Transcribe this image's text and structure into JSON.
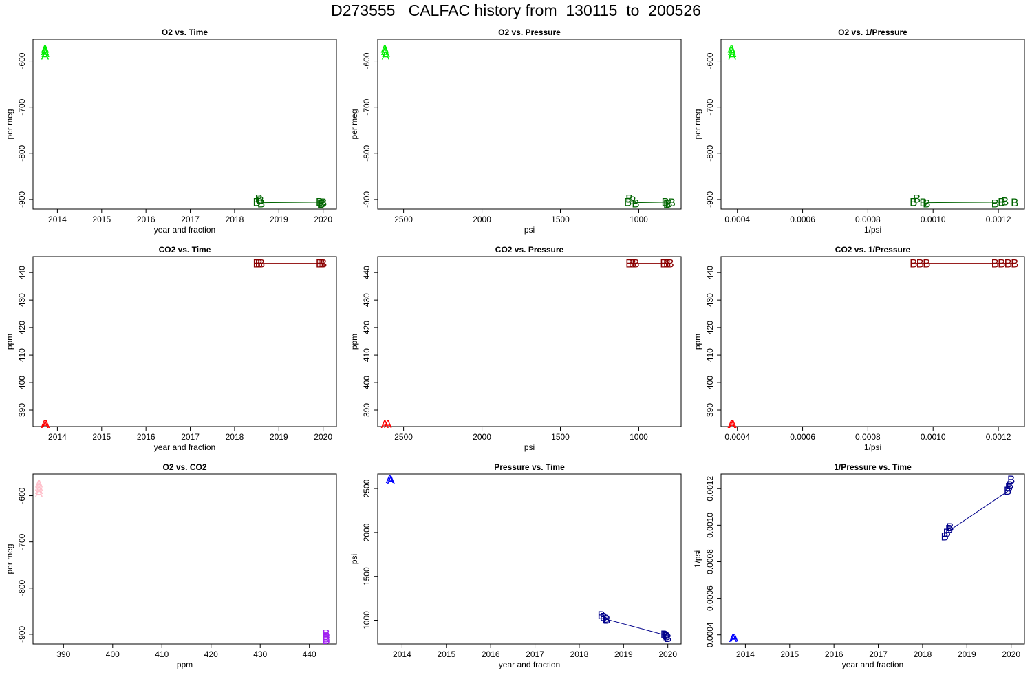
{
  "figure": {
    "title": "D273555   CALFAC history from  130115  to  200526"
  },
  "colors": {
    "o2": "#00ee00",
    "o2_dark": "#006400",
    "co2": "#ff0000",
    "co2_dark": "#8b0000",
    "o2co2": "#ffc0cb",
    "o2co2_dark": "#a020f0",
    "pressure": "#0000ff",
    "pressure_dark": "#00008b"
  },
  "chart_data": [
    {
      "id": "o2-time",
      "type": "scatter",
      "title": "O2 vs. Time",
      "xlabel": "year and fraction",
      "ylabel": "per meg",
      "xlim": [
        2013.45,
        2020.3
      ],
      "ylim": [
        -921,
        -553
      ],
      "xticks": [
        2014,
        2015,
        2016,
        2017,
        2018,
        2019,
        2020
      ],
      "yticks": [
        -600,
        -700,
        -800,
        -900
      ],
      "color_a": "o2",
      "color_b": "o2_dark",
      "series": [
        {
          "label": "A",
          "points": [
            [
              2013.72,
              -573
            ],
            [
              2013.72,
              -578
            ],
            [
              2013.73,
              -583
            ],
            [
              2013.72,
              -588
            ]
          ]
        },
        {
          "label": "B",
          "line": [
            [
              2018.6,
              -907
            ],
            [
              2019.95,
              -906
            ]
          ],
          "points": [
            [
              2018.5,
              -905
            ],
            [
              2018.55,
              -898
            ],
            [
              2018.58,
              -902
            ],
            [
              2018.6,
              -908
            ],
            [
              2019.92,
              -905
            ],
            [
              2019.95,
              -910
            ],
            [
              2019.97,
              -908
            ],
            [
              2020.0,
              -906
            ]
          ]
        }
      ]
    },
    {
      "id": "o2-pressure",
      "type": "scatter",
      "title": "O2 vs. Pressure",
      "xlabel": "psi",
      "ylabel": "per meg",
      "xlim": [
        2665,
        730
      ],
      "ylim": [
        -921,
        -553
      ],
      "xticks": [
        2500,
        2000,
        1500,
        1000
      ],
      "yticks": [
        -600,
        -700,
        -800,
        -900
      ],
      "color_a": "o2",
      "color_b": "o2_dark",
      "series": [
        {
          "label": "A",
          "points": [
            [
              2620,
              -573
            ],
            [
              2618,
              -578
            ],
            [
              2612,
              -583
            ],
            [
              2615,
              -588
            ]
          ]
        },
        {
          "label": "B",
          "line": [
            [
              1020,
              -907
            ],
            [
              820,
              -906
            ]
          ],
          "points": [
            [
              1070,
              -905
            ],
            [
              1060,
              -898
            ],
            [
              1040,
              -902
            ],
            [
              1020,
              -908
            ],
            [
              830,
              -905
            ],
            [
              820,
              -910
            ],
            [
              810,
              -908
            ],
            [
              790,
              -906
            ]
          ]
        }
      ]
    },
    {
      "id": "o2-invpressure",
      "type": "scatter",
      "title": "O2 vs. 1/Pressure",
      "xlabel": "1/psi",
      "ylabel": "per meg",
      "xlim": [
        0.00035,
        0.00128
      ],
      "ylim": [
        -921,
        -553
      ],
      "xticks": [
        0.0004,
        0.0006,
        0.0008,
        0.001,
        0.0012
      ],
      "xtick_labels": [
        "0.0004",
        "0.0006",
        "0.0008",
        "0.0010",
        "0.0012"
      ],
      "yticks": [
        -600,
        -700,
        -800,
        -900
      ],
      "color_a": "o2",
      "color_b": "o2_dark",
      "series": [
        {
          "label": "A",
          "points": [
            [
              0.000382,
              -573
            ],
            [
              0.000383,
              -578
            ],
            [
              0.000385,
              -583
            ],
            [
              0.000384,
              -588
            ]
          ]
        },
        {
          "label": "B",
          "line": [
            [
              0.00098,
              -907
            ],
            [
              0.00122,
              -906
            ]
          ],
          "points": [
            [
              0.00094,
              -905
            ],
            [
              0.00095,
              -898
            ],
            [
              0.00097,
              -906
            ],
            [
              0.00098,
              -908
            ],
            [
              0.00119,
              -908
            ],
            [
              0.00121,
              -905
            ],
            [
              0.00122,
              -904
            ],
            [
              0.00125,
              -906
            ]
          ]
        }
      ]
    },
    {
      "id": "co2-time",
      "type": "scatter",
      "title": "CO2 vs. Time",
      "xlabel": "year and fraction",
      "ylabel": "ppm",
      "xlim": [
        2013.45,
        2020.3
      ],
      "ylim": [
        384,
        445.8
      ],
      "xticks": [
        2014,
        2015,
        2016,
        2017,
        2018,
        2019,
        2020
      ],
      "yticks": [
        390,
        400,
        410,
        420,
        430,
        440
      ],
      "color_a": "co2",
      "color_b": "co2_dark",
      "series": [
        {
          "label": "A",
          "points": [
            [
              2013.71,
              385.0
            ],
            [
              2013.74,
              385.0
            ]
          ]
        },
        {
          "label": "B",
          "line": [
            [
              2018.5,
              443.4
            ],
            [
              2020.0,
              443.4
            ]
          ],
          "points": [
            [
              2018.5,
              443.4
            ],
            [
              2018.55,
              443.4
            ],
            [
              2018.6,
              443.4
            ],
            [
              2019.92,
              443.4
            ],
            [
              2019.96,
              443.4
            ],
            [
              2020.0,
              443.4
            ]
          ]
        }
      ]
    },
    {
      "id": "co2-pressure",
      "type": "scatter",
      "title": "CO2 vs. Pressure",
      "xlabel": "psi",
      "ylabel": "ppm",
      "xlim": [
        2665,
        730
      ],
      "ylim": [
        384,
        445.8
      ],
      "xticks": [
        2500,
        2000,
        1500,
        1000
      ],
      "yticks": [
        390,
        400,
        410,
        420,
        430,
        440
      ],
      "color_a": "co2",
      "color_b": "co2_dark",
      "series": [
        {
          "label": "A",
          "points": [
            [
              2620,
              385.0
            ],
            [
              2600,
              385.0
            ]
          ]
        },
        {
          "label": "B",
          "line": [
            [
              1060,
              443.4
            ],
            [
              800,
              443.4
            ]
          ],
          "points": [
            [
              1060,
              443.4
            ],
            [
              1040,
              443.4
            ],
            [
              1020,
              443.4
            ],
            [
              840,
              443.4
            ],
            [
              820,
              443.4
            ],
            [
              800,
              443.4
            ]
          ]
        }
      ]
    },
    {
      "id": "co2-invpressure",
      "type": "scatter",
      "title": "CO2 vs. 1/Pressure",
      "xlabel": "1/psi",
      "ylabel": "ppm",
      "xlim": [
        0.00035,
        0.00128
      ],
      "ylim": [
        384,
        445.8
      ],
      "xticks": [
        0.0004,
        0.0006,
        0.0008,
        0.001,
        0.0012
      ],
      "xtick_labels": [
        "0.0004",
        "0.0006",
        "0.0008",
        "0.0010",
        "0.0012"
      ],
      "yticks": [
        390,
        400,
        410,
        420,
        430,
        440
      ],
      "color_a": "co2",
      "color_b": "co2_dark",
      "series": [
        {
          "label": "A",
          "points": [
            [
              0.000382,
              385.0
            ],
            [
              0.000386,
              385.0
            ]
          ]
        },
        {
          "label": "B",
          "line": [
            [
              0.00094,
              443.4
            ],
            [
              0.00125,
              443.4
            ]
          ],
          "points": [
            [
              0.00094,
              443.4
            ],
            [
              0.00096,
              443.4
            ],
            [
              0.00098,
              443.4
            ],
            [
              0.00119,
              443.4
            ],
            [
              0.00121,
              443.4
            ],
            [
              0.00123,
              443.4
            ],
            [
              0.00125,
              443.4
            ]
          ]
        }
      ]
    },
    {
      "id": "o2-co2",
      "type": "scatter",
      "title": "O2 vs. CO2",
      "xlabel": "ppm",
      "ylabel": "per meg",
      "xlim": [
        383.8,
        445.5
      ],
      "ylim": [
        -921,
        -553
      ],
      "xticks": [
        390,
        400,
        410,
        420,
        430,
        440
      ],
      "yticks": [
        -600,
        -700,
        -800,
        -900
      ],
      "color_a": "o2co2",
      "color_b": "o2co2_dark",
      "series": [
        {
          "label": "A",
          "points": [
            [
              385.0,
              -573
            ],
            [
              385.0,
              -580
            ],
            [
              385.0,
              -587
            ],
            [
              385.0,
              -594
            ]
          ]
        },
        {
          "label": "B",
          "points": [
            [
              443.4,
              -898
            ],
            [
              443.4,
              -903
            ],
            [
              443.4,
              -908
            ],
            [
              443.4,
              -912
            ]
          ]
        }
      ]
    },
    {
      "id": "pressure-time",
      "type": "scatter",
      "title": "Pressure vs. Time",
      "xlabel": "year and fraction",
      "ylabel": "psi",
      "xlim": [
        2013.45,
        2020.3
      ],
      "ylim": [
        730,
        2665
      ],
      "xticks": [
        2014,
        2015,
        2016,
        2017,
        2018,
        2019,
        2020
      ],
      "yticks": [
        1000,
        1500,
        2000,
        2500
      ],
      "color_a": "pressure",
      "color_b": "pressure_dark",
      "series": [
        {
          "label": "A",
          "points": [
            [
              2013.72,
              2610
            ],
            [
              2013.75,
              2600
            ]
          ]
        },
        {
          "label": "B",
          "line": [
            [
              2018.55,
              1020
            ],
            [
              2019.95,
              830
            ]
          ],
          "points": [
            [
              2018.5,
              1060
            ],
            [
              2018.55,
              1040
            ],
            [
              2018.6,
              1020
            ],
            [
              2018.62,
              1010
            ],
            [
              2019.92,
              840
            ],
            [
              2019.95,
              830
            ],
            [
              2019.97,
              820
            ],
            [
              2020.0,
              800
            ]
          ]
        }
      ]
    },
    {
      "id": "invpressure-time",
      "type": "scatter",
      "title": "1/Pressure vs. Time",
      "xlabel": "year and fraction",
      "ylabel": "1/psi",
      "xlim": [
        2013.45,
        2020.3
      ],
      "ylim": [
        0.00035,
        0.00128
      ],
      "xticks": [
        2014,
        2015,
        2016,
        2017,
        2018,
        2019,
        2020
      ],
      "yticks": [
        0.0004,
        0.0006,
        0.0008,
        0.001,
        0.0012
      ],
      "ytick_labels": [
        "0.0004",
        "0.0006",
        "0.0008",
        "0.0010",
        "0.0012"
      ],
      "color_a": "pressure",
      "color_b": "pressure_dark",
      "series": [
        {
          "label": "A",
          "points": [
            [
              2013.72,
              0.000383
            ],
            [
              2013.75,
              0.000385
            ]
          ]
        },
        {
          "label": "B",
          "line": [
            [
              2018.6,
              0.00097
            ],
            [
              2019.95,
              0.00119
            ]
          ],
          "points": [
            [
              2018.5,
              0.00094
            ],
            [
              2018.55,
              0.00096
            ],
            [
              2018.6,
              0.00098
            ],
            [
              2018.62,
              0.00099
            ],
            [
              2019.92,
              0.00119
            ],
            [
              2019.95,
              0.00121
            ],
            [
              2019.97,
              0.00122
            ],
            [
              2020.0,
              0.00125
            ]
          ]
        }
      ]
    }
  ]
}
